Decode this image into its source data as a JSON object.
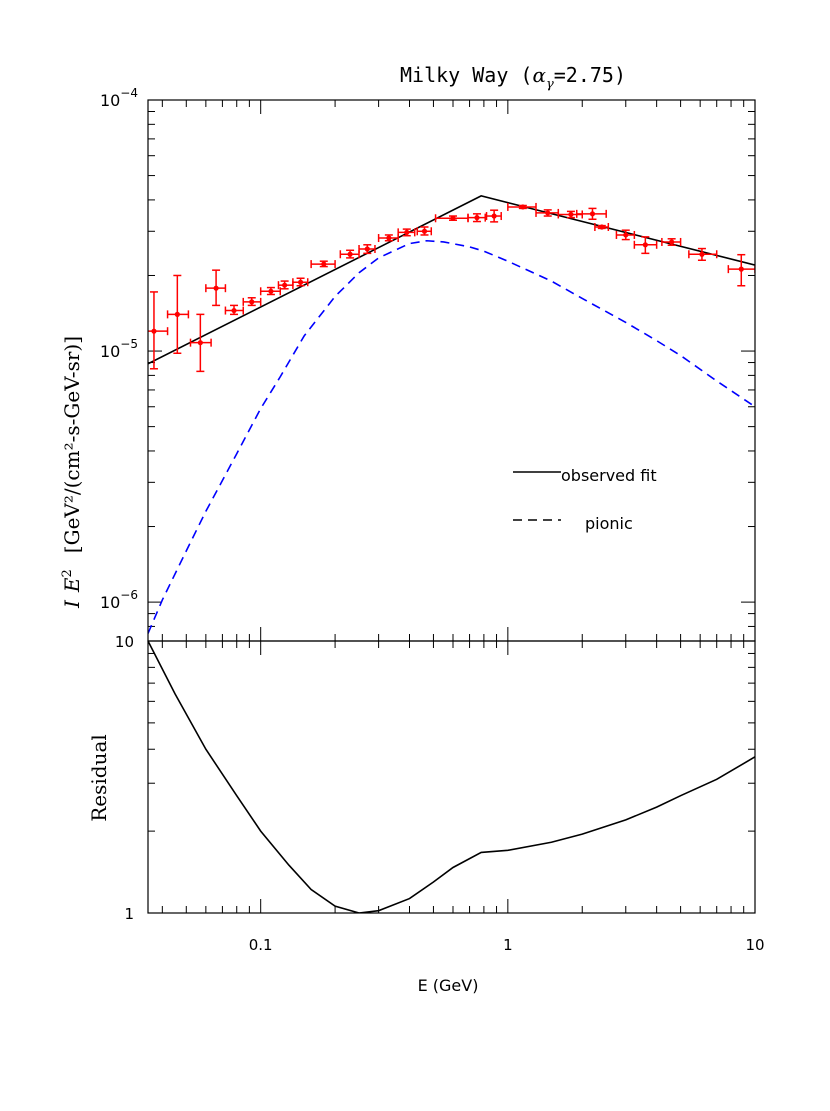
{
  "chart_data": [
    {
      "type": "line",
      "title_prefix": "Milky Way (",
      "title_alpha": "α",
      "title_sub": "γ",
      "title_suffix": "=2.75)",
      "ylabel_I": "I",
      "ylabel_E": "E",
      "ylabel_pow": "2",
      "ylabel_units": "[GeV²/(cm²-s-GeV-sr)]",
      "x_scale": "log",
      "y_scale": "log",
      "xlim": [
        0.035,
        10
      ],
      "ylim": [
        7e-07,
        0.0001
      ],
      "y_ticks": [
        {
          "value": 1e-06,
          "base": "10",
          "exp": "−6"
        },
        {
          "value": 1e-05,
          "base": "10",
          "exp": "−5"
        },
        {
          "value": 0.0001,
          "base": "10",
          "exp": "−4"
        }
      ],
      "legend": {
        "placement": "right-middle",
        "entries": [
          {
            "label": "observed fit",
            "style": "solid"
          },
          {
            "label": "pionic",
            "style": "dashed"
          }
        ]
      },
      "series": [
        {
          "name": "observed fit",
          "style": "solid",
          "color": "#000000",
          "points": [
            [
              0.035,
              8.9e-06
            ],
            [
              0.78,
              4.15e-05
            ],
            [
              10,
              2.2e-05
            ]
          ]
        },
        {
          "name": "pionic",
          "style": "dashed",
          "color": "#0000ff",
          "points": [
            [
              0.035,
              7.5e-07
            ],
            [
              0.04,
              1.02e-06
            ],
            [
              0.05,
              1.6e-06
            ],
            [
              0.06,
              2.3e-06
            ],
            [
              0.07,
              3.05e-06
            ],
            [
              0.08,
              3.9e-06
            ],
            [
              0.1,
              5.9e-06
            ],
            [
              0.12,
              7.9e-06
            ],
            [
              0.15,
              1.15e-05
            ],
            [
              0.2,
              1.65e-05
            ],
            [
              0.25,
              2.05e-05
            ],
            [
              0.3,
              2.35e-05
            ],
            [
              0.4,
              2.68e-05
            ],
            [
              0.47,
              2.75e-05
            ],
            [
              0.55,
              2.72e-05
            ],
            [
              0.7,
              2.6e-05
            ],
            [
              0.8,
              2.5e-05
            ],
            [
              1,
              2.28e-05
            ],
            [
              1.5,
              1.9e-05
            ],
            [
              2,
              1.62e-05
            ],
            [
              3,
              1.3e-05
            ],
            [
              4,
              1.1e-05
            ],
            [
              5,
              9.6e-06
            ],
            [
              7,
              7.6e-06
            ],
            [
              10,
              6e-06
            ]
          ]
        },
        {
          "name": "data",
          "style": "points",
          "color": "#ff0000",
          "points": [
            {
              "x": 0.037,
              "y": 1.2e-05,
              "xlo": 0.033,
              "xhi": 0.042,
              "ylo": 8.5e-06,
              "yhi": 1.72e-05
            },
            {
              "x": 0.046,
              "y": 1.4e-05,
              "xlo": 0.042,
              "xhi": 0.051,
              "ylo": 9.8e-06,
              "yhi": 2e-05
            },
            {
              "x": 0.057,
              "y": 1.08e-05,
              "xlo": 0.052,
              "xhi": 0.063,
              "ylo": 8.3e-06,
              "yhi": 1.4e-05
            },
            {
              "x": 0.066,
              "y": 1.78e-05,
              "xlo": 0.06,
              "xhi": 0.072,
              "ylo": 1.52e-05,
              "yhi": 2.1e-05
            },
            {
              "x": 0.078,
              "y": 1.45e-05,
              "xlo": 0.072,
              "xhi": 0.085,
              "ylo": 1.4e-05,
              "yhi": 1.52e-05
            },
            {
              "x": 0.092,
              "y": 1.57e-05,
              "xlo": 0.085,
              "xhi": 0.1,
              "ylo": 1.52e-05,
              "yhi": 1.63e-05
            },
            {
              "x": 0.11,
              "y": 1.73e-05,
              "xlo": 0.1,
              "xhi": 0.12,
              "ylo": 1.68e-05,
              "yhi": 1.79e-05
            },
            {
              "x": 0.125,
              "y": 1.83e-05,
              "xlo": 0.118,
              "xhi": 0.135,
              "ylo": 1.77e-05,
              "yhi": 1.9e-05
            },
            {
              "x": 0.145,
              "y": 1.88e-05,
              "xlo": 0.135,
              "xhi": 0.155,
              "ylo": 1.82e-05,
              "yhi": 1.95e-05
            },
            {
              "x": 0.18,
              "y": 2.22e-05,
              "xlo": 0.16,
              "xhi": 0.2,
              "ylo": 2.17e-05,
              "yhi": 2.28e-05
            },
            {
              "x": 0.23,
              "y": 2.43e-05,
              "xlo": 0.21,
              "xhi": 0.25,
              "ylo": 2.35e-05,
              "yhi": 2.52e-05
            },
            {
              "x": 0.27,
              "y": 2.55e-05,
              "xlo": 0.25,
              "xhi": 0.29,
              "ylo": 2.45e-05,
              "yhi": 2.65e-05
            },
            {
              "x": 0.33,
              "y": 2.82e-05,
              "xlo": 0.3,
              "xhi": 0.36,
              "ylo": 2.75e-05,
              "yhi": 2.9e-05
            },
            {
              "x": 0.39,
              "y": 2.97e-05,
              "xlo": 0.36,
              "xhi": 0.42,
              "ylo": 2.88e-05,
              "yhi": 3.06e-05
            },
            {
              "x": 0.46,
              "y": 3e-05,
              "xlo": 0.43,
              "xhi": 0.49,
              "ylo": 2.9e-05,
              "yhi": 3.12e-05
            },
            {
              "x": 0.6,
              "y": 3.38e-05,
              "xlo": 0.51,
              "xhi": 0.69,
              "ylo": 3.32e-05,
              "yhi": 3.45e-05
            },
            {
              "x": 0.75,
              "y": 3.4e-05,
              "xlo": 0.69,
              "xhi": 0.81,
              "ylo": 3.28e-05,
              "yhi": 3.52e-05
            },
            {
              "x": 0.88,
              "y": 3.45e-05,
              "xlo": 0.82,
              "xhi": 0.94,
              "ylo": 3.27e-05,
              "yhi": 3.64e-05
            },
            {
              "x": 1.15,
              "y": 3.75e-05,
              "xlo": 1.0,
              "xhi": 1.3,
              "ylo": 3.7e-05,
              "yhi": 3.8e-05
            },
            {
              "x": 1.45,
              "y": 3.55e-05,
              "xlo": 1.3,
              "xhi": 1.6,
              "ylo": 3.45e-05,
              "yhi": 3.65e-05
            },
            {
              "x": 1.8,
              "y": 3.5e-05,
              "xlo": 1.6,
              "xhi": 2.0,
              "ylo": 3.4e-05,
              "yhi": 3.6e-05
            },
            {
              "x": 2.2,
              "y": 3.52e-05,
              "xlo": 1.9,
              "xhi": 2.5,
              "ylo": 3.35e-05,
              "yhi": 3.7e-05
            },
            {
              "x": 2.4,
              "y": 3.12e-05,
              "xlo": 2.25,
              "xhi": 2.55,
              "ylo": 3.08e-05,
              "yhi": 3.16e-05
            },
            {
              "x": 3.0,
              "y": 2.9e-05,
              "xlo": 2.75,
              "xhi": 3.25,
              "ylo": 2.78e-05,
              "yhi": 3.03e-05
            },
            {
              "x": 3.6,
              "y": 2.65e-05,
              "xlo": 3.25,
              "xhi": 4.0,
              "ylo": 2.45e-05,
              "yhi": 2.85e-05
            },
            {
              "x": 4.6,
              "y": 2.72e-05,
              "xlo": 4.2,
              "xhi": 5.0,
              "ylo": 2.64e-05,
              "yhi": 2.8e-05
            },
            {
              "x": 6.1,
              "y": 2.43e-05,
              "xlo": 5.4,
              "xhi": 7.0,
              "ylo": 2.3e-05,
              "yhi": 2.56e-05
            },
            {
              "x": 8.8,
              "y": 2.12e-05,
              "xlo": 7.8,
              "xhi": 10.0,
              "ylo": 1.82e-05,
              "yhi": 2.42e-05
            }
          ]
        }
      ]
    },
    {
      "type": "line",
      "ylabel": "Residual",
      "xlabel": "E (GeV)",
      "x_scale": "log",
      "y_scale": "log",
      "xlim": [
        0.035,
        10
      ],
      "ylim": [
        1,
        10
      ],
      "x_ticks": [
        {
          "value": 0.1,
          "label": "0.1"
        },
        {
          "value": 1,
          "label": "1"
        },
        {
          "value": 10,
          "label": "10"
        }
      ],
      "y_ticks": [
        {
          "value": 1,
          "label": "1"
        },
        {
          "value": 10,
          "label": "10"
        }
      ],
      "series": [
        {
          "name": "",
          "style": "solid",
          "color": "#000000",
          "points": [
            [
              0.035,
              10
            ],
            [
              0.045,
              6.4
            ],
            [
              0.06,
              4.0
            ],
            [
              0.08,
              2.7
            ],
            [
              0.1,
              2.0
            ],
            [
              0.13,
              1.5
            ],
            [
              0.16,
              1.22
            ],
            [
              0.2,
              1.06
            ],
            [
              0.25,
              1.0
            ],
            [
              0.3,
              1.02
            ],
            [
              0.4,
              1.13
            ],
            [
              0.5,
              1.3
            ],
            [
              0.6,
              1.47
            ],
            [
              0.78,
              1.67
            ],
            [
              1,
              1.7
            ],
            [
              1.5,
              1.82
            ],
            [
              2,
              1.95
            ],
            [
              3,
              2.2
            ],
            [
              4,
              2.45
            ],
            [
              5,
              2.7
            ],
            [
              7,
              3.1
            ],
            [
              10,
              3.75
            ]
          ]
        }
      ]
    }
  ]
}
